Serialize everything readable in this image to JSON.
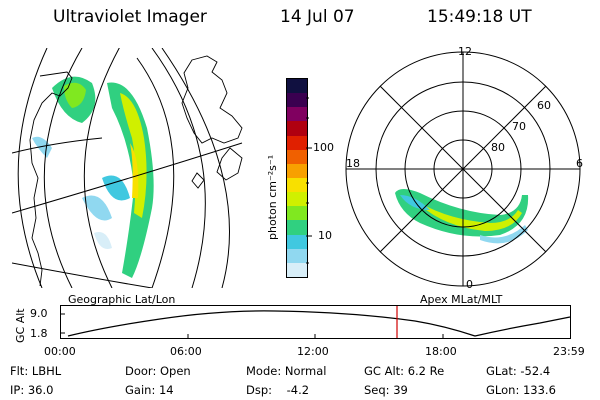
{
  "header": {
    "title": "Ultraviolet Imager",
    "date": "14 Jul 07",
    "time": "15:49:18 UT"
  },
  "colorbar": {
    "unit_label": "photon cm⁻²s⁻¹",
    "ticks": [
      "100",
      "10"
    ],
    "colors": [
      "#101040",
      "#3a0050",
      "#800060",
      "#b00010",
      "#e02000",
      "#f06000",
      "#f8a000",
      "#f8e000",
      "#d0f000",
      "#80e820",
      "#30d080",
      "#40c8e0",
      "#90d8f0",
      "#d8eef8"
    ]
  },
  "left_map": {
    "label": "Geographic Lat/Lon"
  },
  "right_map": {
    "label": "Apex MLat/MLT",
    "mlt_labels": {
      "top": "12",
      "left": "18",
      "right": "6",
      "bottom": "0"
    },
    "lat_labels": [
      "60",
      "70",
      "80"
    ]
  },
  "altitude_plot": {
    "ylabel": "GC Alt",
    "yticks": [
      "9.0",
      "1.8"
    ],
    "xticks": [
      "00:00",
      "06:00",
      "12:00",
      "18:00",
      "23:59"
    ],
    "marker_color": "#d00000"
  },
  "footer": {
    "row1": [
      {
        "label": "Flt:",
        "value": "LBHL"
      },
      {
        "label": "Door:",
        "value": "Open"
      },
      {
        "label": "Mode:",
        "value": "Normal"
      },
      {
        "label": "GC Alt:",
        "value": "6.2 Re"
      },
      {
        "label": "GLat:",
        "value": "-52.4"
      }
    ],
    "row2": [
      {
        "label": "IP:",
        "value": "36.0"
      },
      {
        "label": "Gain:",
        "value": "14"
      },
      {
        "label": "Dsp:",
        "value": "-4.2"
      },
      {
        "label": "Seq:",
        "value": "39"
      },
      {
        "label": "GLon:",
        "value": "133.6"
      }
    ]
  }
}
